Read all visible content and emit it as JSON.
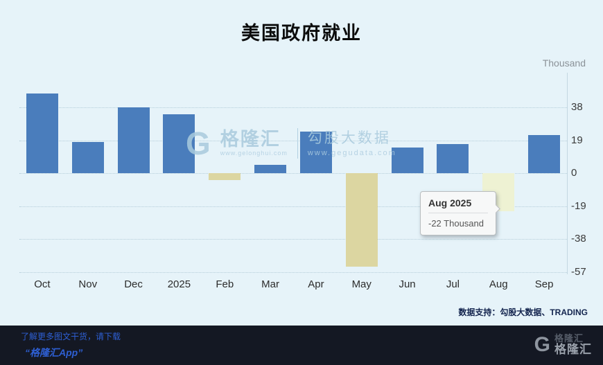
{
  "title": "美国政府就业",
  "chart_data": {
    "type": "bar",
    "title": "美国政府就业",
    "unit_label": "Thousand",
    "categories": [
      "Oct",
      "Nov",
      "Dec",
      "2025",
      "Feb",
      "Mar",
      "Apr",
      "May",
      "Jun",
      "Jul",
      "Aug",
      "Sep"
    ],
    "values": [
      46,
      18,
      38,
      34,
      -4,
      5,
      24,
      -54,
      15,
      17,
      -22,
      22
    ],
    "highlight_index": 10,
    "highlighted_category": "Aug",
    "yticks": [
      38,
      19,
      0,
      -19,
      -38,
      -57
    ],
    "ylim": [
      -57,
      58
    ],
    "grid": "horizontal-dotted",
    "legend": "none",
    "colors": {
      "positive": "#4a7dbc",
      "negative": "#dcd6a1",
      "highlight": "#eef2d3",
      "background": "#e6f3f9"
    }
  },
  "tooltip": {
    "title": "Aug 2025",
    "value": "-22 Thousand"
  },
  "watermark": {
    "g": "G",
    "brand": "格隆汇",
    "brand_url": "www.gelonghui.com",
    "text": "勾股大数据",
    "url": "www.gegudata.com"
  },
  "data_support": "数据支持：勾股大数据、TRADING",
  "footer": {
    "line1": "了解更多图文干货，请下载",
    "line2": "“格隆汇App”",
    "logo_g": "G",
    "brand": "格隆汇",
    "brand_echo": "格隆汇"
  }
}
